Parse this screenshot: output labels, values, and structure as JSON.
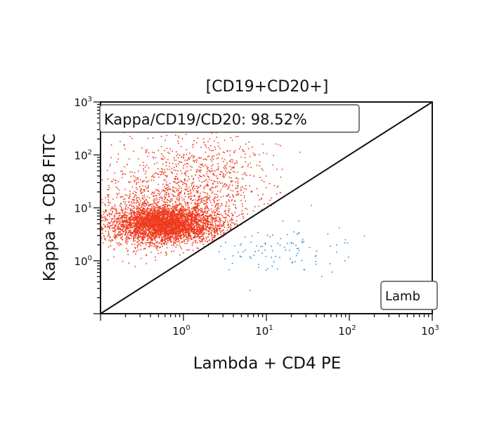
{
  "chart_data": {
    "type": "scatter",
    "title": "[CD19+CD20+]",
    "xlabel": "Lambda + CD4 PE",
    "ylabel": "Kappa + CD8 FITC",
    "xscale": "log",
    "yscale": "log",
    "xlim": [
      0.1,
      1000
    ],
    "ylim": [
      0.1,
      1000
    ],
    "x_ticks": [
      {
        "value": 1,
        "base": "10",
        "exp": "0"
      },
      {
        "value": 10,
        "base": "10",
        "exp": "1"
      },
      {
        "value": 100,
        "base": "10",
        "exp": "2"
      },
      {
        "value": 1000,
        "base": "10",
        "exp": "3"
      }
    ],
    "y_ticks": [
      {
        "value": 1,
        "base": "10",
        "exp": "0"
      },
      {
        "value": 10,
        "base": "10",
        "exp": "1"
      },
      {
        "value": 100,
        "base": "10",
        "exp": "2"
      },
      {
        "value": 1000,
        "base": "10",
        "exp": "3"
      }
    ],
    "gate_line": {
      "from": [
        0.1,
        0.1
      ],
      "to": [
        1000,
        1000
      ]
    },
    "annotations": {
      "kappa_gate": "Kappa/CD19/CD20: 98.52%",
      "lambda_gate": "Lamb"
    },
    "series": [
      {
        "name": "Kappa",
        "color": "#ee3a1e",
        "main_cluster_center": [
          0.6,
          5
        ],
        "n_points": 5600
      },
      {
        "name": "Lambda",
        "color": "#2b8fd0",
        "main_cluster_center": [
          15,
          1.8
        ],
        "n_points": 110
      }
    ]
  }
}
